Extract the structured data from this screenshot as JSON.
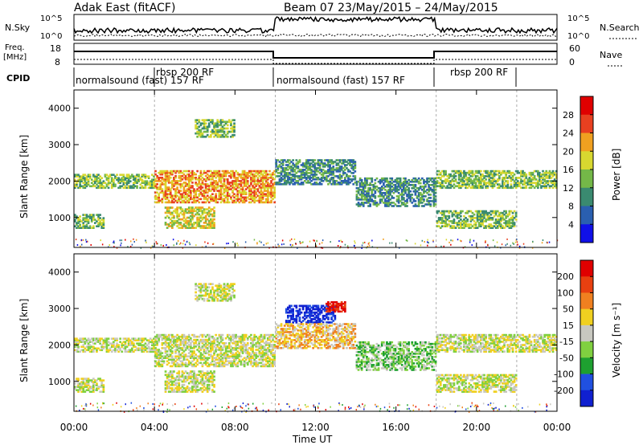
{
  "header": {
    "station": "Adak East (fitACF)",
    "beam_label": "Beam 07 23/May/2015 – 24/May/2015"
  },
  "top_panels": {
    "nsky_label": "N.Sky",
    "nsky_ticks": [
      "10^5",
      "10^0"
    ],
    "nsearch_label": "N.Search",
    "nsearch_ticks": [
      "10^5",
      "10^0"
    ],
    "freq_label": "Freq.",
    "freq_unit": "[MHz]",
    "freq_ticks": [
      "18",
      "8"
    ],
    "nave_label": "Nave",
    "nave_ticks": [
      "60",
      "0"
    ],
    "cpid_label": "CPID",
    "cpid_segments": [
      {
        "label": "normalsound (fast) 157 RF",
        "start_hour": 0,
        "end_hour": 10
      },
      {
        "label": "rbsp 200 RF",
        "start_hour": 4,
        "end_hour": 10
      },
      {
        "label": "normalsound (fast) 157 RF",
        "start_hour": 10,
        "end_hour": 18
      },
      {
        "label": "rbsp 200 RF",
        "start_hour": 18,
        "end_hour": 22
      }
    ]
  },
  "chart_data": [
    {
      "type": "heatmap",
      "name": "power",
      "ylabel": "Slant Range [km]",
      "xlabel": "",
      "xlim_hours": [
        0,
        24
      ],
      "ylim": [
        180,
        4500
      ],
      "yticks": [
        "1000",
        "2000",
        "3000",
        "4000"
      ],
      "colorbar_label": "Power [dB]",
      "colorbar_ticks": [
        "4",
        "8",
        "12",
        "16",
        "20",
        "24",
        "28"
      ],
      "colorbar_colors": [
        "#1010e8",
        "#2a5fb0",
        "#3a8a70",
        "#74b848",
        "#d8d830",
        "#f0a020",
        "#e84020",
        "#e00000"
      ],
      "echo_regions": [
        {
          "t0": 0,
          "t1": 4,
          "r0": 1800,
          "r1": 2200,
          "level": 3
        },
        {
          "t0": 4,
          "t1": 10,
          "r0": 1400,
          "r1": 2300,
          "level": 5
        },
        {
          "t0": 4.5,
          "t1": 7,
          "r0": 700,
          "r1": 1300,
          "level": 4
        },
        {
          "t0": 0,
          "t1": 1.5,
          "r0": 700,
          "r1": 1100,
          "level": 3
        },
        {
          "t0": 6,
          "t1": 8,
          "r0": 3200,
          "r1": 3700,
          "level": 3
        },
        {
          "t0": 10,
          "t1": 14,
          "r0": 1900,
          "r1": 2600,
          "level": 2
        },
        {
          "t0": 14,
          "t1": 18,
          "r0": 1300,
          "r1": 2100,
          "level": 2
        },
        {
          "t0": 18,
          "t1": 24,
          "r0": 1800,
          "r1": 2300,
          "level": 3
        },
        {
          "t0": 18,
          "t1": 22,
          "r0": 700,
          "r1": 1200,
          "level": 3
        }
      ]
    },
    {
      "type": "heatmap",
      "name": "velocity",
      "ylabel": "Slant Range [km]",
      "xlabel": "Time UT",
      "xlim_hours": [
        0,
        24
      ],
      "ylim": [
        180,
        4500
      ],
      "yticks": [
        "1000",
        "2000",
        "3000",
        "4000"
      ],
      "xticks": [
        "00:00",
        "04:00",
        "08:00",
        "12:00",
        "16:00",
        "20:00",
        "00:00"
      ],
      "colorbar_label": "Velocity [m s⁻¹]",
      "colorbar_ticks": [
        "200",
        "100",
        "50",
        "15",
        "-15",
        "-50",
        "-100",
        "-200"
      ],
      "colorbar_colors": [
        "#1020d0",
        "#2050e0",
        "#1ea030",
        "#80d040",
        "#c8c8c0",
        "#f0d020",
        "#f08020",
        "#e84010",
        "#e00000"
      ],
      "echo_regions": [
        {
          "t0": 0,
          "t1": 4,
          "r0": 1800,
          "r1": 2200,
          "level": 4
        },
        {
          "t0": 4,
          "t1": 10,
          "r0": 1400,
          "r1": 2300,
          "level": 4
        },
        {
          "t0": 4.5,
          "t1": 7,
          "r0": 700,
          "r1": 1300,
          "level": 4
        },
        {
          "t0": 0,
          "t1": 1.5,
          "r0": 700,
          "r1": 1100,
          "level": 4
        },
        {
          "t0": 6,
          "t1": 8,
          "r0": 3200,
          "r1": 3700,
          "level": 4
        },
        {
          "t0": 10.5,
          "t1": 13,
          "r0": 2600,
          "r1": 3100,
          "level": 0
        },
        {
          "t0": 12.5,
          "t1": 13.5,
          "r0": 2900,
          "r1": 3200,
          "level": 8
        },
        {
          "t0": 10,
          "t1": 14,
          "r0": 1900,
          "r1": 2600,
          "level": 5
        },
        {
          "t0": 14,
          "t1": 18,
          "r0": 1300,
          "r1": 2100,
          "level": 3
        },
        {
          "t0": 18,
          "t1": 24,
          "r0": 1800,
          "r1": 2300,
          "level": 4
        },
        {
          "t0": 18,
          "t1": 22,
          "r0": 700,
          "r1": 1200,
          "level": 4
        }
      ]
    }
  ]
}
